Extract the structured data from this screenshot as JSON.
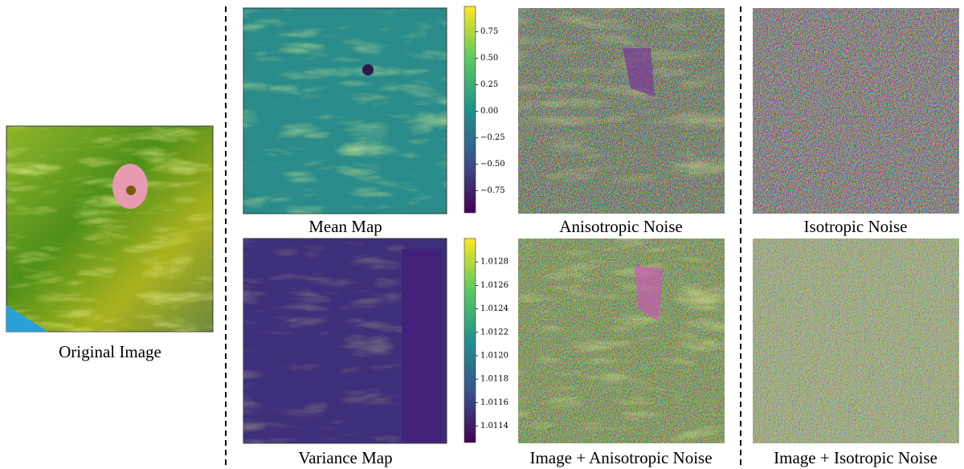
{
  "panels": {
    "original": {
      "caption": "Original Image"
    },
    "mean_map": {
      "caption": "Mean Map",
      "colorbar": {
        "lim": [
          -0.96,
          0.99
        ],
        "ticks": [
          {
            "value": -0.75,
            "label": "−0.75"
          },
          {
            "value": -0.5,
            "label": "−0.50"
          },
          {
            "value": -0.25,
            "label": "−0.25"
          },
          {
            "value": 0,
            "label": "0.00"
          },
          0.25,
          {
            "value": 0.5,
            "label": "0.50"
          },
          0.75
        ]
      }
    },
    "variance_map": {
      "caption": "Variance Map",
      "colorbar": {
        "lim": [
          1.01126,
          1.013
        ],
        "ticks": [
          {
            "value": 1.0114,
            "label": "1.0114"
          },
          1.0116,
          1.0118,
          {
            "value": 1.012,
            "label": "1.0120"
          },
          1.0122,
          1.0124,
          1.0126,
          1.0128
        ]
      }
    },
    "anisotropic_noise": {
      "caption": "Anisotropic Noise"
    },
    "image_plus_anisotropic": {
      "caption": "Image + Anisotropic Noise"
    },
    "isotropic_noise": {
      "caption": "Isotropic Noise"
    },
    "image_plus_isotropic": {
      "caption": "Image + Isotropic Noise"
    }
  }
}
